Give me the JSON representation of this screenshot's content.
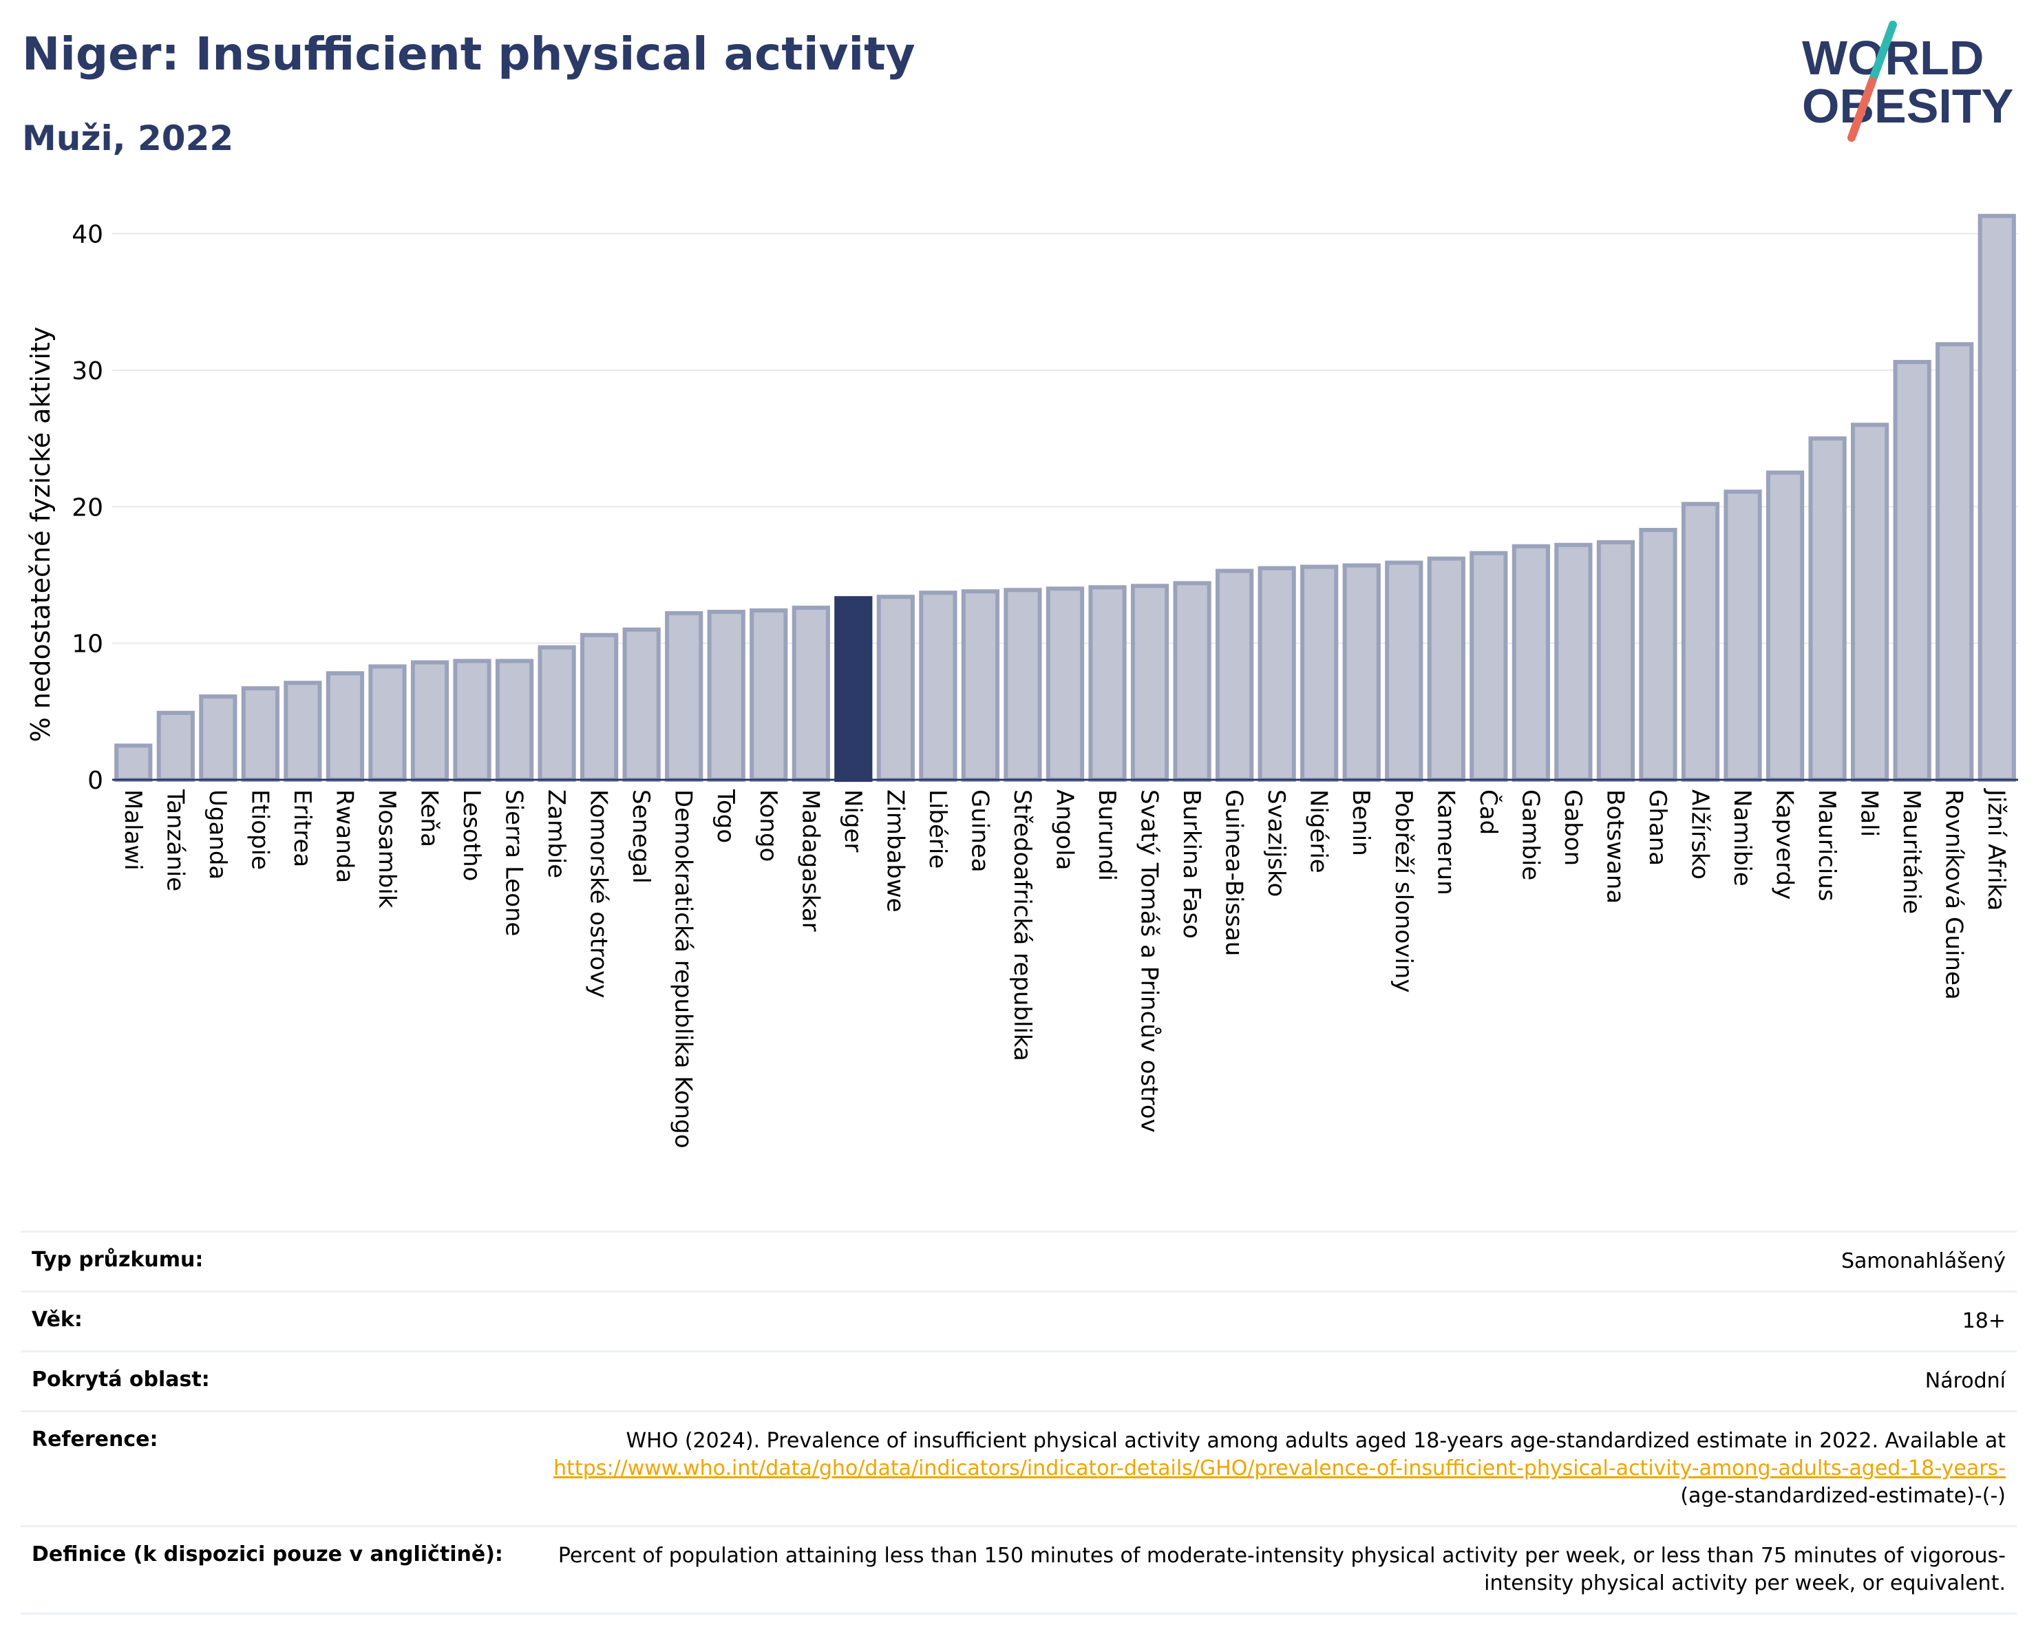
{
  "header": {
    "title": "Niger: Insufficient physical activity",
    "subtitle": "Muži, 2022",
    "logo_line1": "WORLD",
    "logo_line2": "OBESITY"
  },
  "colors": {
    "title": "#2b3a67",
    "bar": "#c0c4d3",
    "bar_stroke": "#9ba2bb",
    "highlight": "#2b3a67",
    "grid": "#e8e9ef",
    "logo_teal": "#2fb8b0",
    "logo_coral": "#e86a58"
  },
  "chart_data": {
    "type": "bar",
    "ylabel": "% nedostatečné fyzické aktivity",
    "ylim": [
      0,
      43
    ],
    "yticks": [
      0,
      10,
      20,
      30,
      40
    ],
    "grid": true,
    "highlight": "Niger",
    "categories": [
      "Malawi",
      "Tanzánie",
      "Uganda",
      "Etiopie",
      "Eritrea",
      "Rwanda",
      "Mosambik",
      "Keňa",
      "Lesotho",
      "Sierra Leone",
      "Zambie",
      "Komorské ostrovy",
      "Senegal",
      "Demokratická republika Kongo",
      "Togo",
      "Kongo",
      "Madagaskar",
      "Niger",
      "Zimbabwe",
      "Libérie",
      "Guinea",
      "Středoafrická republika",
      "Angola",
      "Burundi",
      "Svatý Tomáš a Princův ostrov",
      "Burkina Faso",
      "Guinea-Bissau",
      "Svazijsko",
      "Nigérie",
      "Benin",
      "Pobřeží slonoviny",
      "Kamerun",
      "Čad",
      "Gambie",
      "Gabon",
      "Botswana",
      "Ghana",
      "Alžírsko",
      "Namibie",
      "Kapverdy",
      "Mauricius",
      "Mali",
      "Mauritánie",
      "Rovníková Guinea",
      "Jižní Afrika"
    ],
    "values": [
      2.5,
      4.9,
      6.1,
      6.7,
      7.1,
      7.8,
      8.3,
      8.6,
      8.7,
      8.7,
      9.7,
      10.6,
      11.0,
      12.2,
      12.3,
      12.4,
      12.6,
      13.3,
      13.4,
      13.7,
      13.8,
      13.9,
      14.0,
      14.1,
      14.2,
      14.4,
      15.3,
      15.5,
      15.6,
      15.7,
      15.9,
      16.2,
      16.6,
      17.1,
      17.2,
      17.4,
      18.3,
      20.2,
      21.1,
      22.5,
      25.0,
      26.0,
      30.6,
      31.9,
      41.3
    ]
  },
  "meta": {
    "rows": [
      {
        "label": "Typ průzkumu:",
        "value": "Samonahlášený"
      },
      {
        "label": "Věk:",
        "value": "18+"
      },
      {
        "label": "Pokrytá oblast:",
        "value": "Národní"
      },
      {
        "label": "Reference:",
        "value_pre": "WHO (2024). Prevalence of insufficient physical activity among adults aged 18-years age-standardized estimate in 2022. Available at",
        "link": "https://www.who.int/data/gho/data/indicators/indicator-details/GHO/prevalence-of-insufficient-physical-activity-among-adults-aged-18-years-",
        "value_post": "(age-standardized-estimate)-(-)"
      },
      {
        "label": "Definice (k dispozici pouze v angličtině):",
        "value": "Percent of population attaining less than 150 minutes of moderate-intensity physical activity per week, or less than 75 minutes of vigorous-intensity physical activity per week, or equivalent."
      }
    ]
  }
}
